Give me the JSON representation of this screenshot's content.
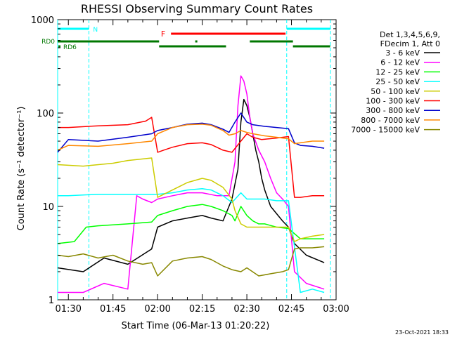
{
  "chart_data": {
    "type": "line",
    "title": "RHESSI Observing Summary Count Rates",
    "xlabel": "Start Time (06-Mar-13 01:20:22)",
    "ylabel": "Count Rate (s⁻¹ detector⁻¹)",
    "yscale": "log",
    "ylim": [
      1,
      1000
    ],
    "xlim_minutes": [
      6.4,
      100
    ],
    "x_unit": "minutes after 01:20:00",
    "x_ticks": [
      {
        "m": 10,
        "label": "01:30"
      },
      {
        "m": 25,
        "label": "01:45"
      },
      {
        "m": 40,
        "label": "02:00"
      },
      {
        "m": 55,
        "label": "02:15"
      },
      {
        "m": 70,
        "label": "02:30"
      },
      {
        "m": 85,
        "label": "02:45"
      },
      {
        "m": 100,
        "label": "03:00"
      }
    ],
    "y_ticks": [
      {
        "v": 1,
        "label": "1"
      },
      {
        "v": 10,
        "label": "10"
      },
      {
        "v": 100,
        "label": "100"
      },
      {
        "v": 1000,
        "label": "1000"
      }
    ],
    "legend": {
      "header": [
        "Det 1,3,4,5,6,9,",
        "FDecim 1, Att 0"
      ],
      "position": "right"
    },
    "series": [
      {
        "name": "3 - 6 keV",
        "color": "#000000",
        "t": [
          6.4,
          15,
          22,
          30,
          38,
          40,
          45,
          50,
          55,
          58,
          62,
          65,
          67,
          68,
          69,
          70,
          71,
          72,
          73,
          74,
          75,
          76,
          78,
          82,
          84,
          86,
          90,
          96
        ],
        "v": [
          2.2,
          2.0,
          2.8,
          2.4,
          3.5,
          6.0,
          7.0,
          7.5,
          8.0,
          7.5,
          7.0,
          12,
          25,
          80,
          140,
          120,
          90,
          60,
          40,
          30,
          20,
          15,
          10,
          7.0,
          6.0,
          4.0,
          3.0,
          2.5
        ]
      },
      {
        "name": "6 - 12 keV",
        "color": "#ff00ff",
        "t": [
          6.4,
          15,
          22,
          30,
          33,
          35,
          38,
          40,
          45,
          50,
          55,
          60,
          64,
          66,
          67,
          68,
          69,
          70,
          71,
          72,
          74,
          76,
          78,
          80,
          82,
          84,
          86,
          90,
          96
        ],
        "v": [
          1.2,
          1.2,
          1.5,
          1.3,
          13,
          12,
          11,
          12,
          13,
          14,
          14,
          13,
          13,
          30,
          120,
          250,
          220,
          160,
          90,
          60,
          40,
          30,
          20,
          14,
          12,
          10,
          2.0,
          1.5,
          1.3
        ]
      },
      {
        "name": "12 - 25 keV",
        "color": "#00ff00",
        "t": [
          6.4,
          12,
          16,
          20,
          30,
          38,
          40,
          45,
          50,
          55,
          58,
          62,
          65,
          66,
          68,
          70,
          72,
          74,
          76,
          80,
          84,
          88,
          96
        ],
        "v": [
          4.0,
          4.2,
          6.0,
          6.2,
          6.5,
          6.8,
          8.0,
          9.0,
          10,
          10.5,
          10,
          9.0,
          8.0,
          7.0,
          10,
          8.0,
          7.0,
          6.5,
          6.5,
          6.0,
          5.8,
          4.5,
          4.5
        ]
      },
      {
        "name": "25 - 50 keV",
        "color": "#00ffff",
        "t": [
          6.4,
          10,
          20,
          30,
          40,
          45,
          50,
          55,
          58,
          62,
          65,
          68,
          70,
          72,
          76,
          80,
          84,
          88,
          92,
          96
        ],
        "v": [
          13,
          13,
          13.5,
          13.5,
          13.5,
          14,
          15,
          15.5,
          15,
          13,
          11,
          14,
          12,
          12,
          12,
          11.5,
          11.5,
          1.2,
          1.3,
          1.2
        ]
      },
      {
        "name": "50 - 100 keV",
        "color": "#cccc00",
        "t": [
          6.4,
          15,
          25,
          30,
          38,
          40,
          45,
          50,
          55,
          58,
          62,
          65,
          66,
          68,
          70,
          75,
          80,
          84,
          86,
          88,
          92,
          96
        ],
        "v": [
          28,
          27,
          29,
          31,
          33,
          12.5,
          15,
          18,
          20,
          19,
          16,
          12,
          9.0,
          6.5,
          6.0,
          6.0,
          6.0,
          6.0,
          4.2,
          4.5,
          4.8,
          5.0
        ]
      },
      {
        "name": "100 - 300 keV",
        "color": "#ff0000",
        "t": [
          6.4,
          10,
          20,
          30,
          36,
          38,
          40,
          42,
          45,
          50,
          55,
          58,
          62,
          65,
          68,
          70,
          72,
          75,
          80,
          84,
          86,
          88,
          92,
          96
        ],
        "v": [
          70,
          70,
          73,
          75,
          82,
          90,
          38,
          40,
          43,
          47,
          48,
          46,
          40,
          38,
          50,
          60,
          55,
          52,
          54,
          56,
          12.5,
          12.5,
          13,
          13
        ]
      },
      {
        "name": "300 - 800 keV",
        "color": "#0000cc",
        "t": [
          6.4,
          10,
          20,
          30,
          38,
          40,
          45,
          50,
          55,
          58,
          62,
          64,
          66,
          68,
          70,
          72,
          76,
          80,
          84,
          86,
          88,
          92,
          96
        ],
        "v": [
          38,
          52,
          50,
          55,
          60,
          65,
          70,
          76,
          78,
          75,
          67,
          62,
          80,
          100,
          80,
          75,
          72,
          70,
          68,
          48,
          45,
          44,
          42
        ]
      },
      {
        "name": "800 - 7000 keV",
        "color": "#ff8800",
        "t": [
          6.4,
          10,
          20,
          30,
          38,
          40,
          45,
          50,
          55,
          58,
          62,
          64,
          66,
          68,
          70,
          72,
          76,
          80,
          84,
          86,
          88,
          92,
          96
        ],
        "v": [
          40,
          45,
          44,
          47,
          50,
          60,
          70,
          75,
          76,
          74,
          65,
          58,
          60,
          65,
          62,
          60,
          57,
          55,
          53,
          47,
          48,
          50,
          50
        ]
      },
      {
        "name": "7000 - 15000 keV",
        "color": "#888800",
        "t": [
          6.4,
          10,
          15,
          20,
          25,
          30,
          35,
          38,
          40,
          45,
          50,
          55,
          58,
          62,
          65,
          68,
          70,
          74,
          78,
          82,
          84,
          86,
          88,
          92,
          96
        ],
        "v": [
          3.0,
          2.9,
          3.1,
          2.8,
          3.0,
          2.6,
          2.4,
          2.5,
          1.8,
          2.6,
          2.8,
          2.9,
          2.7,
          2.3,
          2.1,
          2.0,
          2.2,
          1.8,
          1.9,
          2.0,
          2.1,
          3.5,
          3.6,
          3.6,
          3.7
        ]
      }
    ],
    "vertical_markers": {
      "color": "#00ffff",
      "minutes": [
        6.4,
        16.9,
        83.4,
        98.1
      ]
    },
    "flags": [
      {
        "label": "N",
        "color": "#00ffff",
        "level": "top",
        "segments": [
          [
            6.4,
            16.9
          ],
          [
            83.4,
            98.1
          ]
        ]
      },
      {
        "label": "F",
        "color": "#ff0000",
        "level": "middle",
        "segments": [
          [
            44.5,
            83
          ]
        ]
      },
      {
        "label": "RD0",
        "color": "#007700",
        "level": "lower",
        "segments": [
          [
            6.4,
            40.5
          ],
          [
            71,
            85.5
          ]
        ]
      },
      {
        "label": "RD6",
        "color": "#007700",
        "level": "lowest",
        "segments": [
          [
            40.5,
            63
          ],
          [
            85.5,
            98
          ]
        ]
      }
    ],
    "flag_dots": [
      {
        "color": "#007700",
        "level": "lower",
        "minutes": [
          53
        ]
      },
      {
        "color": "#007700",
        "level": "lowest",
        "minutes": [
          7
        ]
      }
    ],
    "footer_date": "23-Oct-2021 18:33"
  }
}
